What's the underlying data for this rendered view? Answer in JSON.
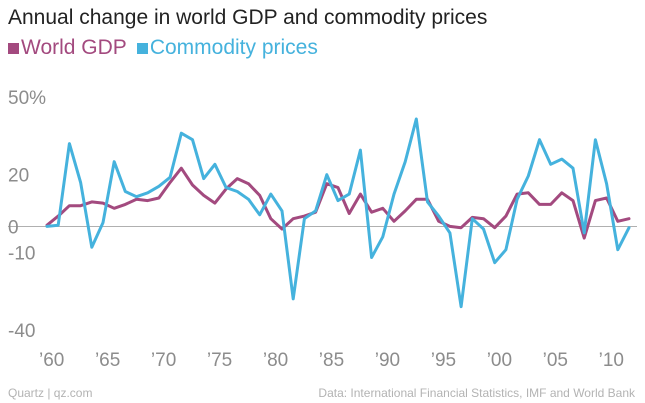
{
  "chart_data": {
    "type": "line",
    "title": "Annual change in world GDP and commodity prices",
    "xlabel": "",
    "ylabel": "",
    "xlim": [
      1959,
      2012
    ],
    "ylim": [
      -40,
      50
    ],
    "grid": false,
    "legend_position": "top-left",
    "x": [
      1960,
      1961,
      1962,
      1963,
      1964,
      1965,
      1966,
      1967,
      1968,
      1969,
      1970,
      1971,
      1972,
      1973,
      1974,
      1975,
      1976,
      1977,
      1978,
      1979,
      1980,
      1981,
      1982,
      1983,
      1984,
      1985,
      1986,
      1987,
      1988,
      1989,
      1990,
      1991,
      1992,
      1993,
      1994,
      1995,
      1996,
      1997,
      1998,
      1999,
      2000,
      2001,
      2002,
      2003,
      2004,
      2005,
      2006,
      2007,
      2008,
      2009,
      2010,
      2011,
      2012
    ],
    "series": [
      {
        "name": "World GDP",
        "color": "#a34a7f",
        "values": [
          0.5,
          4,
          8,
          8,
          9.5,
          9,
          7,
          8.5,
          10.5,
          10,
          11,
          17,
          22.5,
          16,
          12,
          9,
          14.5,
          18.5,
          16.5,
          12,
          3,
          -1,
          3,
          4,
          5.5,
          16.5,
          15,
          5,
          12.5,
          5.5,
          7,
          2,
          6,
          10.5,
          10.5,
          2,
          0,
          -0.5,
          3.5,
          3,
          -0.5,
          4,
          12.5,
          13,
          8.5,
          8.5,
          13,
          10,
          -4.5,
          10,
          11,
          2,
          3
        ]
      },
      {
        "name": "Commodity prices",
        "color": "#45b2dd",
        "values": [
          0,
          0.5,
          32,
          17,
          -8,
          1.5,
          25,
          13.5,
          11.5,
          13,
          15.5,
          19,
          36,
          33.5,
          18.5,
          24,
          15,
          13.5,
          10.5,
          4.5,
          12.5,
          6,
          -28,
          3,
          6,
          20,
          10,
          12.5,
          29.5,
          -12,
          -4,
          12.5,
          25,
          41.5,
          9.5,
          4,
          -2.5,
          -31,
          3,
          -1,
          -14,
          -9,
          10.5,
          19.5,
          33.5,
          24,
          26,
          22.5,
          -2.5,
          33.5,
          16.5,
          -9,
          -0.5
        ]
      }
    ],
    "y_ticks": [
      {
        "value": 50,
        "label": "50%"
      },
      {
        "value": 20,
        "label": "20"
      },
      {
        "value": 0,
        "label": "0"
      },
      {
        "value": -10,
        "label": "-10"
      },
      {
        "value": -40,
        "label": "-40"
      }
    ],
    "x_ticks": [
      {
        "value": 1960,
        "label": "’60"
      },
      {
        "value": 1965,
        "label": "’65"
      },
      {
        "value": 1970,
        "label": "’70"
      },
      {
        "value": 1975,
        "label": "’75"
      },
      {
        "value": 1980,
        "label": "’80"
      },
      {
        "value": 1985,
        "label": "’85"
      },
      {
        "value": 1990,
        "label": "’90"
      },
      {
        "value": 1995,
        "label": "’95"
      },
      {
        "value": 2000,
        "label": "’00"
      },
      {
        "value": 2005,
        "label": "’05"
      },
      {
        "value": 2010,
        "label": "’10"
      }
    ]
  },
  "footer": {
    "source_left": "Quartz | qz.com",
    "source_right": "Data: International Financial Statistics, IMF and World Bank"
  },
  "colors": {
    "title": "#222222",
    "tick_labels": "#8c8c8c",
    "zero_line": "#b0b0b0",
    "footer": "#b3b3b3"
  }
}
